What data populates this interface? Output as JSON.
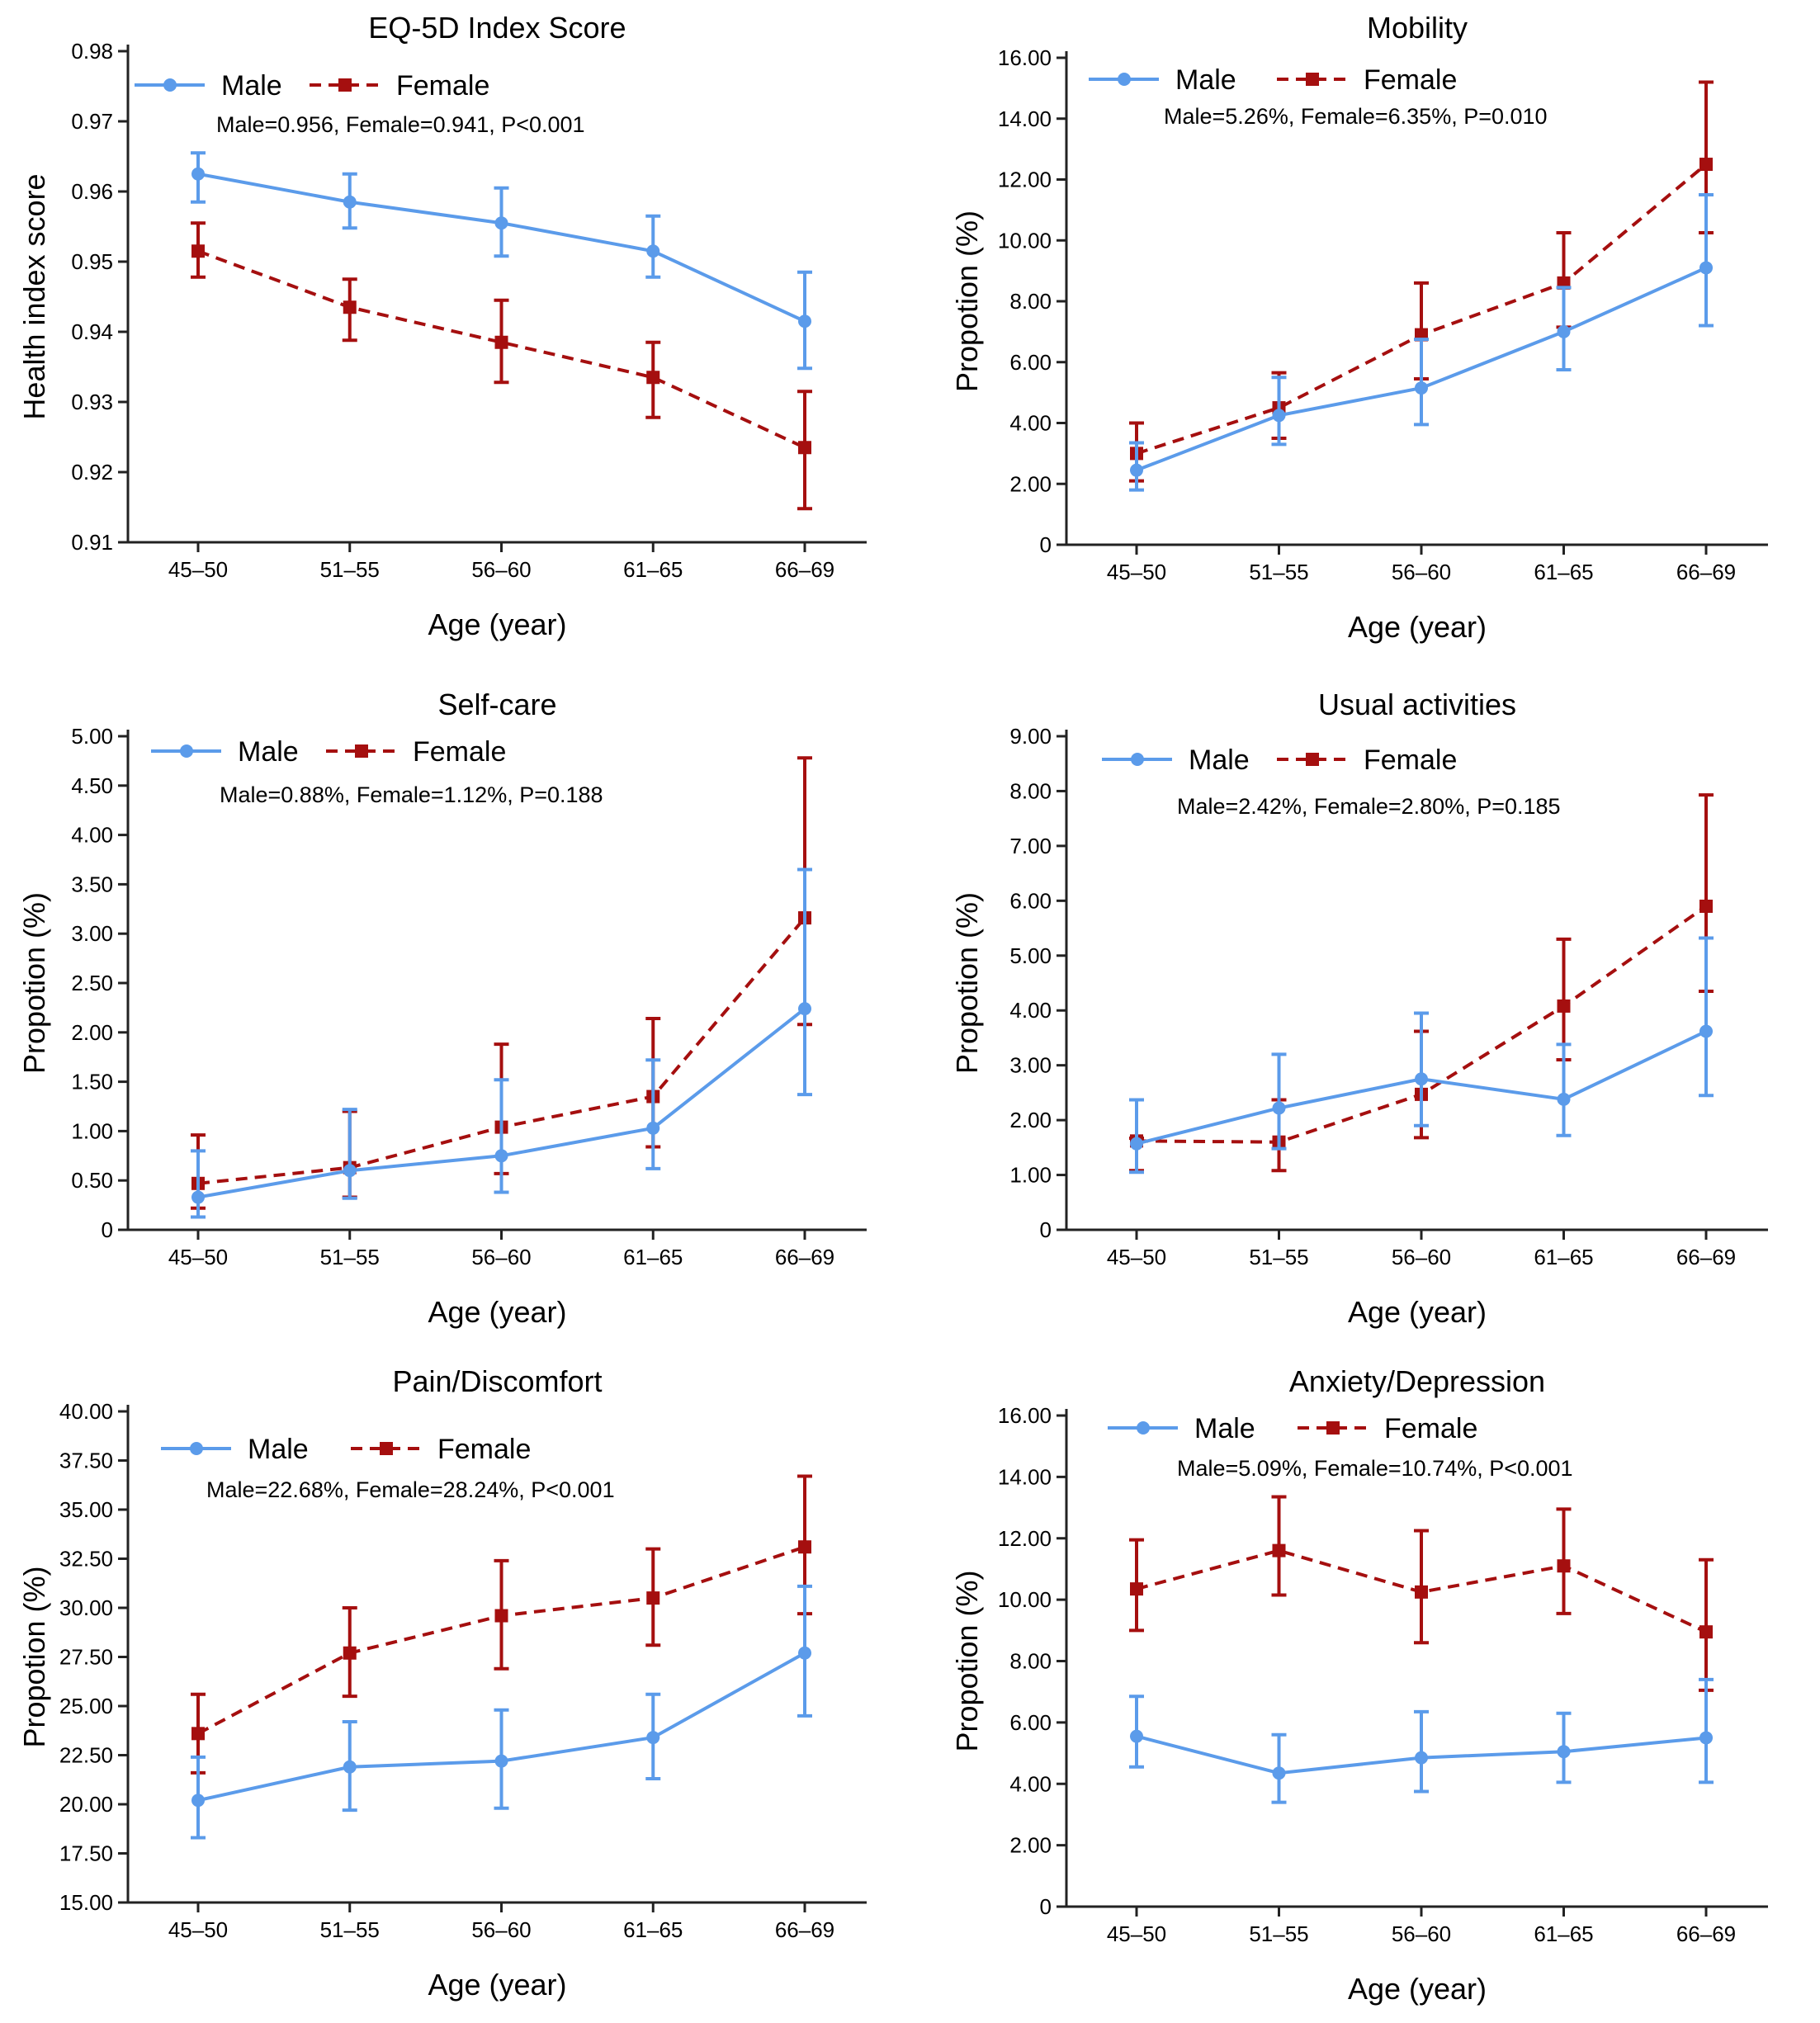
{
  "figure": {
    "colors": {
      "male": "#5b9bea",
      "female": "#a50f0f",
      "axis": "#222222"
    },
    "legend_labels": {
      "male": "Male",
      "female": "Female"
    }
  },
  "chart_data": [
    {
      "type": "line",
      "title": "EQ-5D Index Score",
      "xlabel": "Age (year)",
      "ylabel": "Health index score",
      "note": "Male=0.956, Female=0.941, P<0.001",
      "categories": [
        "45–50",
        "51–55",
        "56–60",
        "61–65",
        "66–69"
      ],
      "ylim": [
        0.91,
        0.98
      ],
      "yticks": [
        "0.91",
        "0.92",
        "0.93",
        "0.94",
        "0.95",
        "0.96",
        "0.97",
        "0.98"
      ],
      "series": [
        {
          "name": "Male",
          "values": [
            0.9625,
            0.9585,
            0.9555,
            0.9515,
            0.9415
          ],
          "err_low": [
            0.9585,
            0.9548,
            0.9508,
            0.9478,
            0.9348
          ],
          "err_high": [
            0.9655,
            0.9625,
            0.9605,
            0.9565,
            0.9485
          ]
        },
        {
          "name": "Female",
          "values": [
            0.9515,
            0.9435,
            0.9385,
            0.9335,
            0.9235
          ],
          "err_low": [
            0.9478,
            0.9388,
            0.9328,
            0.9278,
            0.9148
          ],
          "err_high": [
            0.9555,
            0.9475,
            0.9445,
            0.9385,
            0.9315
          ]
        }
      ],
      "grid": false,
      "legend_position": "top"
    },
    {
      "type": "line",
      "title": "Mobility",
      "xlabel": "Age (year)",
      "ylabel": "Propotion (%)",
      "note": "Male=5.26%, Female=6.35%, P=0.010",
      "categories": [
        "45–50",
        "51–55",
        "56–60",
        "61–65",
        "66–69"
      ],
      "ylim": [
        0,
        16
      ],
      "yticks": [
        "0",
        "2.00",
        "4.00",
        "6.00",
        "8.00",
        "10.00",
        "12.00",
        "14.00",
        "16.00"
      ],
      "series": [
        {
          "name": "Male",
          "values": [
            2.45,
            4.25,
            5.15,
            7.0,
            9.1
          ],
          "err_low": [
            1.8,
            3.3,
            3.95,
            5.75,
            7.2
          ],
          "err_high": [
            3.35,
            5.5,
            6.75,
            8.45,
            11.5
          ]
        },
        {
          "name": "Female",
          "values": [
            3.0,
            4.5,
            6.9,
            8.6,
            12.5
          ],
          "err_low": [
            2.1,
            3.5,
            5.45,
            7.15,
            10.25
          ],
          "err_high": [
            4.0,
            5.65,
            8.6,
            10.25,
            15.2
          ]
        }
      ],
      "grid": false,
      "legend_position": "top"
    },
    {
      "type": "line",
      "title": "Self-care",
      "xlabel": "Age (year)",
      "ylabel": "Propotion (%)",
      "note": "Male=0.88%, Female=1.12%, P=0.188",
      "categories": [
        "45–50",
        "51–55",
        "56–60",
        "61–65",
        "66–69"
      ],
      "ylim": [
        0,
        5
      ],
      "yticks": [
        "0",
        "0.50",
        "1.00",
        "1.50",
        "2.00",
        "2.50",
        "3.00",
        "3.50",
        "4.00",
        "4.50",
        "5.00"
      ],
      "series": [
        {
          "name": "Male",
          "values": [
            0.33,
            0.6,
            0.75,
            1.03,
            2.24
          ],
          "err_low": [
            0.13,
            0.32,
            0.38,
            0.62,
            1.37
          ],
          "err_high": [
            0.8,
            1.22,
            1.52,
            1.72,
            3.65
          ]
        },
        {
          "name": "Female",
          "values": [
            0.47,
            0.63,
            1.04,
            1.35,
            3.16
          ],
          "err_low": [
            0.22,
            0.33,
            0.57,
            0.84,
            2.08
          ],
          "err_high": [
            0.96,
            1.2,
            1.88,
            2.14,
            4.78
          ]
        }
      ],
      "grid": false,
      "legend_position": "top"
    },
    {
      "type": "line",
      "title": "Usual activities",
      "xlabel": "Age (year)",
      "ylabel": "Propotion (%)",
      "note": "Male=2.42%, Female=2.80%, P=0.185",
      "categories": [
        "45–50",
        "51–55",
        "56–60",
        "61–65",
        "66–69"
      ],
      "ylim": [
        0,
        9
      ],
      "yticks": [
        "0",
        "1.00",
        "2.00",
        "3.00",
        "4.00",
        "5.00",
        "6.00",
        "7.00",
        "8.00",
        "9.00"
      ],
      "series": [
        {
          "name": "Male",
          "values": [
            1.57,
            2.22,
            2.75,
            2.38,
            3.62
          ],
          "err_low": [
            1.05,
            1.48,
            1.9,
            1.72,
            2.45
          ],
          "err_high": [
            2.37,
            3.2,
            3.95,
            3.38,
            5.32
          ]
        },
        {
          "name": "Female",
          "values": [
            1.62,
            1.6,
            2.47,
            4.08,
            5.9
          ],
          "err_low": [
            1.08,
            1.08,
            1.68,
            3.1,
            4.35
          ],
          "err_high": [
            1.67,
            2.37,
            3.62,
            5.3,
            7.93
          ]
        }
      ],
      "grid": false,
      "legend_position": "top"
    },
    {
      "type": "line",
      "title": "Pain/Discomfort",
      "xlabel": "Age (year)",
      "ylabel": "Propotion (%)",
      "note": "Male=22.68%, Female=28.24%, P<0.001",
      "categories": [
        "45–50",
        "51–55",
        "56–60",
        "61–65",
        "66–69"
      ],
      "ylim": [
        15,
        40
      ],
      "yticks": [
        "15.00",
        "17.50",
        "20.00",
        "22.50",
        "25.00",
        "27.50",
        "30.00",
        "32.50",
        "35.00",
        "37.50",
        "40.00"
      ],
      "series": [
        {
          "name": "Male",
          "values": [
            20.2,
            21.9,
            22.2,
            23.4,
            27.7
          ],
          "err_low": [
            18.3,
            19.7,
            19.8,
            21.3,
            24.5
          ],
          "err_high": [
            22.4,
            24.2,
            24.8,
            25.6,
            31.1
          ]
        },
        {
          "name": "Female",
          "values": [
            23.6,
            27.7,
            29.6,
            30.5,
            33.1
          ],
          "err_low": [
            21.6,
            25.5,
            26.9,
            28.1,
            29.7
          ],
          "err_high": [
            25.6,
            30.0,
            32.4,
            33.0,
            36.7
          ]
        }
      ],
      "grid": false,
      "legend_position": "top"
    },
    {
      "type": "line",
      "title": "Anxiety/Depression",
      "xlabel": "Age (year)",
      "ylabel": "Propotion (%)",
      "note": "Male=5.09%, Female=10.74%, P<0.001",
      "categories": [
        "45–50",
        "51–55",
        "56–60",
        "61–65",
        "66–69"
      ],
      "ylim": [
        0,
        16
      ],
      "yticks": [
        "0",
        "2.00",
        "4.00",
        "6.00",
        "8.00",
        "10.00",
        "12.00",
        "14.00",
        "16.00"
      ],
      "series": [
        {
          "name": "Male",
          "values": [
            5.55,
            4.35,
            4.85,
            5.05,
            5.5
          ],
          "err_low": [
            4.55,
            3.4,
            3.75,
            4.05,
            4.05
          ],
          "err_high": [
            6.85,
            5.6,
            6.35,
            6.3,
            7.4
          ]
        },
        {
          "name": "Female",
          "values": [
            10.35,
            11.6,
            10.25,
            11.1,
            8.95
          ],
          "err_low": [
            9.0,
            10.15,
            8.6,
            9.55,
            7.05
          ],
          "err_high": [
            11.95,
            13.35,
            12.25,
            12.95,
            11.3
          ]
        }
      ],
      "grid": false,
      "legend_position": "top"
    }
  ]
}
